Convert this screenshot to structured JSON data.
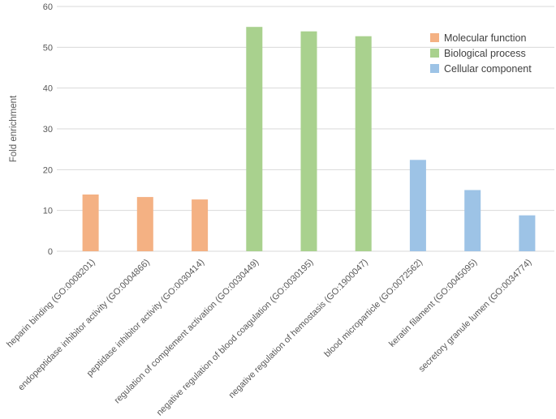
{
  "chart_data": {
    "type": "bar",
    "ylabel": "Fold enrichment",
    "ylim": [
      0,
      60
    ],
    "yticks": [
      0,
      10,
      20,
      30,
      40,
      50,
      60
    ],
    "grid": true,
    "legend_position": "top-right",
    "categories": [
      "heparin binding (GO:0008201)",
      "endopeptidase inhibitor activity (GO:0004866)",
      "peptidase inhibitor activity (GO:0030414)",
      "regulation of complement activation (GO:0030449)",
      "negative regulation of blood coagulation (GO:0030195)",
      "negative regulation of hemostasis (GO:1900047)",
      "blood microparticle (GO:0072562)",
      "keratin filament (GO:0045095)",
      "secretory granule lumen (GO:0034774)"
    ],
    "series": [
      {
        "name": "Molecular function",
        "color": "#F4B183",
        "values": [
          13.9,
          13.3,
          12.7,
          null,
          null,
          null,
          null,
          null,
          null
        ]
      },
      {
        "name": "Biological process",
        "color": "#A9D18E",
        "values": [
          null,
          null,
          null,
          55.0,
          53.9,
          52.7,
          null,
          null,
          null
        ]
      },
      {
        "name": "Cellular component",
        "color": "#9DC3E6",
        "values": [
          null,
          null,
          null,
          null,
          null,
          null,
          22.4,
          15.0,
          8.8
        ]
      }
    ]
  }
}
